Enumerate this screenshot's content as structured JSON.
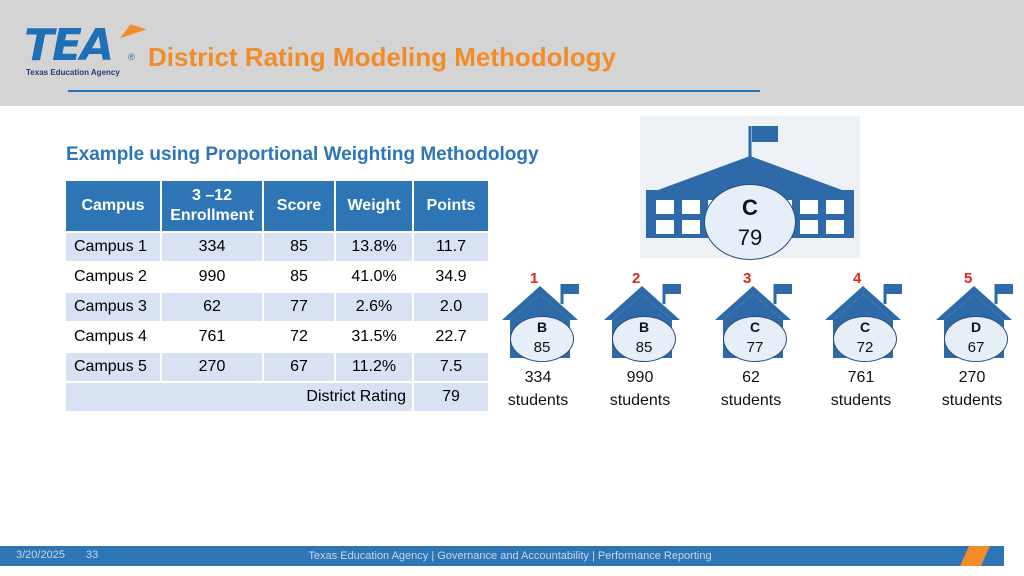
{
  "header": {
    "logo_text": "TEA",
    "logo_reg": "®",
    "logo_subtitle": "Texas Education Agency",
    "title": "District Rating Modeling Methodology"
  },
  "subtitle": "Example using Proportional Weighting Methodology",
  "table": {
    "headers": [
      "Campus",
      "3 –12 Enrollment",
      "Score",
      "Weight",
      "Points"
    ],
    "rows": [
      [
        "Campus 1",
        "334",
        "85",
        "13.8%",
        "11.7"
      ],
      [
        "Campus 2",
        "990",
        "85",
        "41.0%",
        "34.9"
      ],
      [
        "Campus 3",
        "62",
        "77",
        "2.6%",
        "2.0"
      ],
      [
        "Campus 4",
        "761",
        "72",
        "31.5%",
        "22.7"
      ],
      [
        "Campus 5",
        "270",
        "67",
        "11.2%",
        "7.5"
      ]
    ],
    "total_label": "District Rating",
    "total_value": "79"
  },
  "district": {
    "grade": "C",
    "score": "79"
  },
  "campuses": [
    {
      "num": "1",
      "grade": "B",
      "score": "85",
      "count": "334",
      "unit": "students"
    },
    {
      "num": "2",
      "grade": "B",
      "score": "85",
      "count": "990",
      "unit": "students"
    },
    {
      "num": "3",
      "grade": "C",
      "score": "77",
      "count": "62",
      "unit": "students"
    },
    {
      "num": "4",
      "grade": "C",
      "score": "72",
      "count": "761",
      "unit": "students"
    },
    {
      "num": "5",
      "grade": "D",
      "score": "67",
      "count": "270",
      "unit": "students"
    }
  ],
  "footer": {
    "date": "3/20/2025",
    "page": "33",
    "center": "Texas Education Agency | Governance and Accountability | Performance Reporting"
  },
  "colors": {
    "brand_blue": "#2e75b6",
    "accent_orange": "#f28c28",
    "number_red": "#e2271d"
  }
}
